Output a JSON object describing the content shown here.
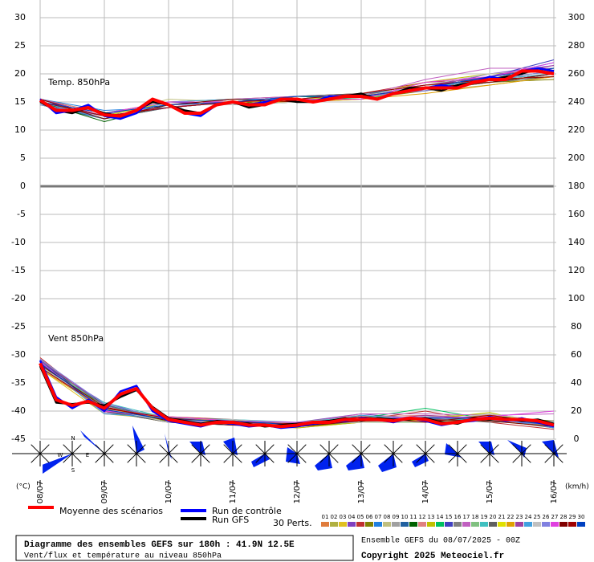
{
  "chart_data": {
    "type": "line",
    "annotations": {
      "temp": "Temp. 850hPa",
      "wind": "Vent 850hPa",
      "y_unit": "(°C)",
      "y2_unit": "(km/h)",
      "compass": [
        "N",
        "W",
        "E",
        "S"
      ]
    },
    "xlim": [
      0,
      192
    ],
    "xticks": [
      {
        "value": 0,
        "label": "08/07"
      },
      {
        "value": 24,
        "label": "09/07"
      },
      {
        "value": 48,
        "label": "10/07"
      },
      {
        "value": 72,
        "label": "11/07"
      },
      {
        "value": 96,
        "label": "12/07"
      },
      {
        "value": 120,
        "label": "13/07"
      },
      {
        "value": 144,
        "label": "14/07"
      },
      {
        "value": 168,
        "label": "15/07"
      },
      {
        "value": 192,
        "label": "16/07"
      }
    ],
    "ylim": [
      -45,
      30
    ],
    "yticks": [
      -45,
      -40,
      -35,
      -30,
      -25,
      -20,
      -15,
      -10,
      -5,
      0,
      5,
      10,
      15,
      20,
      25,
      30
    ],
    "y2lim": [
      0,
      300
    ],
    "y2ticks": [
      0,
      20,
      40,
      60,
      80,
      100,
      120,
      140,
      160,
      180,
      200,
      220,
      240,
      260,
      280,
      300
    ],
    "grid": true,
    "x": [
      0,
      6,
      12,
      18,
      24,
      30,
      36,
      42,
      48,
      54,
      60,
      66,
      72,
      78,
      84,
      90,
      96,
      102,
      108,
      114,
      120,
      126,
      132,
      138,
      144,
      150,
      156,
      162,
      168,
      174,
      180,
      186,
      192
    ],
    "series": [
      {
        "name": "Moyenne des scénarios",
        "color": "#ff0000",
        "temp": [
          15.3,
          13.5,
          13.5,
          14,
          12.7,
          12.5,
          13.5,
          15.5,
          14.5,
          13,
          13,
          14.5,
          15,
          14.5,
          14.5,
          15.5,
          15.5,
          15,
          15.5,
          16,
          16,
          15.5,
          16.5,
          17,
          17.5,
          17.5,
          17.5,
          18.5,
          19,
          19,
          20.5,
          20.5,
          20
        ],
        "wind": [
          54,
          28,
          24,
          27,
          22,
          32,
          36,
          22,
          14,
          12,
          10,
          12,
          12,
          10,
          10,
          9,
          10,
          12,
          12,
          14,
          14,
          14,
          13,
          15,
          14,
          11,
          12,
          14,
          15,
          14,
          14,
          13,
          10
        ]
      },
      {
        "name": "Run de contrôle",
        "color": "#0000ff",
        "temp": [
          15.5,
          13,
          13.5,
          14.5,
          12.5,
          12,
          13,
          15.5,
          14.5,
          13,
          12.5,
          14.5,
          15,
          14.5,
          15,
          15.5,
          15.5,
          15,
          16,
          16,
          16,
          15.5,
          16.5,
          17,
          17.5,
          18,
          17.5,
          18.5,
          19.5,
          19,
          20.5,
          21,
          20.5
        ],
        "wind": [
          56,
          30,
          22,
          28,
          20,
          34,
          38,
          20,
          13,
          11,
          9,
          12,
          11,
          9,
          10,
          8,
          9,
          11,
          12,
          13,
          15,
          14,
          12,
          15,
          13,
          10,
          12,
          13,
          16,
          13,
          15,
          12,
          9
        ]
      },
      {
        "name": "Run GFS",
        "color": "#000000",
        "temp": [
          15,
          13.5,
          13,
          14,
          13,
          12.5,
          13.5,
          15,
          14.5,
          13.5,
          13,
          14.5,
          15,
          14,
          14.5,
          15.5,
          15,
          15,
          15.5,
          16,
          16.5,
          15.5,
          16.5,
          17.5,
          17.5,
          17,
          18,
          18.5,
          19,
          19.5,
          20,
          21,
          20.5
        ],
        "wind": [
          52,
          26,
          25,
          26,
          24,
          30,
          35,
          23,
          15,
          13,
          11,
          13,
          12,
          11,
          9,
          10,
          11,
          12,
          13,
          15,
          13,
          15,
          14,
          14,
          15,
          12,
          11,
          15,
          14,
          15,
          13,
          14,
          11
        ]
      }
    ],
    "perturbations": {
      "label": "30 Perts.",
      "x": [
        0,
        24,
        48,
        72,
        96,
        120,
        144,
        168,
        192
      ],
      "series": [
        {
          "name": "01",
          "color": "#e07c3c",
          "temp": [
            15,
            12.5,
            14,
            15.5,
            15.5,
            16,
            18,
            19.5,
            21
          ],
          "wind": [
            52,
            20,
            12,
            10,
            8,
            12,
            16,
            14,
            8
          ]
        },
        {
          "name": "02",
          "color": "#b0b040",
          "temp": [
            15.5,
            13,
            15,
            14.5,
            15,
            16.5,
            17,
            18.5,
            20
          ],
          "wind": [
            56,
            24,
            15,
            13,
            11,
            16,
            12,
            18,
            12
          ]
        },
        {
          "name": "03",
          "color": "#e0c020",
          "temp": [
            14.5,
            12,
            14.5,
            15,
            16,
            15.5,
            18,
            19,
            19.5
          ],
          "wind": [
            50,
            18,
            14,
            11,
            9,
            13,
            15,
            13,
            9
          ]
        },
        {
          "name": "04",
          "color": "#8040c0",
          "temp": [
            15,
            13,
            14,
            15,
            15.5,
            16,
            17.5,
            20,
            21.5
          ],
          "wind": [
            54,
            26,
            13,
            12,
            12,
            18,
            14,
            17,
            11
          ]
        },
        {
          "name": "05",
          "color": "#c03030",
          "temp": [
            15.5,
            12.5,
            15,
            15.5,
            16,
            16.5,
            18.5,
            19,
            20.5
          ],
          "wind": [
            58,
            22,
            16,
            14,
            10,
            14,
            20,
            12,
            7
          ]
        },
        {
          "name": "06",
          "color": "#808000",
          "temp": [
            15,
            12,
            14.5,
            14.5,
            15,
            15.5,
            17,
            18.5,
            19
          ],
          "wind": [
            52,
            20,
            12,
            11,
            9,
            12,
            13,
            16,
            13
          ]
        },
        {
          "name": "07",
          "color": "#2080e0",
          "temp": [
            15.5,
            13.5,
            14,
            15,
            15.5,
            16,
            17.5,
            19.5,
            22
          ],
          "wind": [
            55,
            24,
            14,
            13,
            11,
            15,
            14,
            15,
            9
          ]
        },
        {
          "name": "08",
          "color": "#c0c080",
          "temp": [
            15,
            12.5,
            15.5,
            15,
            16,
            16,
            17,
            18,
            19.5
          ],
          "wind": [
            53,
            21,
            15,
            12,
            10,
            13,
            16,
            18,
            10
          ]
        },
        {
          "name": "09",
          "color": "#a0a0a0",
          "temp": [
            15,
            13,
            14.5,
            15.5,
            15,
            16.5,
            18,
            19,
            20
          ],
          "wind": [
            51,
            23,
            13,
            10,
            12,
            17,
            12,
            14,
            11
          ]
        },
        {
          "name": "10",
          "color": "#2060a0",
          "temp": [
            14.5,
            12,
            14,
            15,
            15.5,
            15.5,
            17.5,
            19.5,
            21
          ],
          "wind": [
            57,
            19,
            14,
            13,
            9,
            14,
            15,
            16,
            8
          ]
        },
        {
          "name": "11",
          "color": "#006000",
          "temp": [
            15,
            11.5,
            14.5,
            14.5,
            16,
            16,
            18,
            18.5,
            20
          ],
          "wind": [
            54,
            25,
            12,
            12,
            10,
            13,
            13,
            13,
            12
          ]
        },
        {
          "name": "12",
          "color": "#e08080",
          "temp": [
            15.5,
            13,
            15,
            15,
            15.5,
            16.5,
            17,
            19,
            21
          ],
          "wind": [
            50,
            22,
            16,
            11,
            11,
            16,
            17,
            15,
            10
          ]
        },
        {
          "name": "13",
          "color": "#c0c000",
          "temp": [
            15,
            12.5,
            14,
            15.5,
            15,
            16,
            18.5,
            20,
            20.5
          ],
          "wind": [
            55,
            20,
            13,
            14,
            8,
            12,
            14,
            19,
            9
          ]
        },
        {
          "name": "14",
          "color": "#00c060",
          "temp": [
            15,
            13,
            14.5,
            15,
            16,
            15.5,
            17.5,
            19,
            19.5
          ],
          "wind": [
            53,
            24,
            15,
            12,
            10,
            15,
            22,
            14,
            11
          ]
        },
        {
          "name": "15",
          "color": "#4040c0",
          "temp": [
            15.5,
            12.5,
            15,
            14.5,
            15.5,
            16,
            17,
            19.5,
            22.5
          ],
          "wind": [
            56,
            21,
            12,
            10,
            12,
            13,
            13,
            16,
            8
          ]
        },
        {
          "name": "16",
          "color": "#808080",
          "temp": [
            15,
            12,
            14.5,
            15,
            15,
            16.5,
            18,
            18.5,
            20
          ],
          "wind": [
            52,
            23,
            14,
            13,
            9,
            14,
            15,
            12,
            13
          ]
        },
        {
          "name": "17",
          "color": "#c060c0",
          "temp": [
            15,
            13,
            14,
            15.5,
            16,
            16,
            19,
            21,
            21
          ],
          "wind": [
            54,
            19,
            16,
            11,
            11,
            18,
            18,
            17,
            18
          ]
        },
        {
          "name": "18",
          "color": "#80c080",
          "temp": [
            14.5,
            12.5,
            15,
            15,
            15.5,
            15.5,
            17.5,
            19,
            20.5
          ],
          "wind": [
            57,
            22,
            13,
            12,
            10,
            12,
            12,
            15,
            9
          ]
        },
        {
          "name": "19",
          "color": "#40c0c0",
          "temp": [
            15,
            13,
            14.5,
            14.5,
            15,
            16,
            18,
            19.5,
            21
          ],
          "wind": [
            51,
            26,
            15,
            14,
            12,
            16,
            14,
            14,
            10
          ]
        },
        {
          "name": "20",
          "color": "#606060",
          "temp": [
            15.5,
            12,
            14,
            15,
            16,
            16.5,
            17,
            18.5,
            19.5
          ],
          "wind": [
            55,
            20,
            12,
            10,
            9,
            13,
            16,
            13,
            12
          ]
        },
        {
          "name": "21",
          "color": "#e0e000",
          "temp": [
            15,
            12.5,
            15,
            15.5,
            15.5,
            16,
            17.5,
            19,
            20
          ],
          "wind": [
            53,
            23,
            14,
            12,
            11,
            14,
            13,
            17,
            11
          ]
        },
        {
          "name": "22",
          "color": "#e0a000",
          "temp": [
            15,
            13,
            14.5,
            15,
            15,
            15.5,
            16.5,
            18,
            19.5
          ],
          "wind": [
            50,
            21,
            16,
            13,
            10,
            15,
            15,
            16,
            9
          ]
        },
        {
          "name": "23",
          "color": "#a040a0",
          "temp": [
            15.5,
            12.5,
            14,
            15,
            16,
            16,
            18,
            19.5,
            21.5
          ],
          "wind": [
            56,
            24,
            13,
            11,
            12,
            13,
            17,
            14,
            10
          ]
        },
        {
          "name": "24",
          "color": "#40a0e0",
          "temp": [
            15,
            12,
            15,
            15.5,
            15.5,
            16.5,
            17.5,
            19,
            20
          ],
          "wind": [
            54,
            18,
            15,
            12,
            9,
            17,
            14,
            15,
            8
          ]
        },
        {
          "name": "25",
          "color": "#c0c0c0",
          "temp": [
            15,
            13,
            14.5,
            14.5,
            15,
            16,
            18,
            20,
            21
          ],
          "wind": [
            52,
            22,
            12,
            14,
            11,
            12,
            13,
            18,
            12
          ]
        },
        {
          "name": "26",
          "color": "#8080e0",
          "temp": [
            14.5,
            12.5,
            14,
            15,
            16,
            16,
            17,
            19,
            20.5
          ],
          "wind": [
            57,
            25,
            14,
            11,
            10,
            14,
            16,
            14,
            10
          ]
        },
        {
          "name": "27",
          "color": "#e040e0",
          "temp": [
            15,
            13,
            15,
            15,
            15.5,
            15.5,
            18.5,
            19.5,
            22
          ],
          "wind": [
            55,
            20,
            16,
            13,
            12,
            15,
            15,
            16,
            20
          ]
        },
        {
          "name": "28",
          "color": "#800000",
          "temp": [
            15.5,
            12,
            14.5,
            15.5,
            15,
            16,
            17.5,
            18.5,
            20
          ],
          "wind": [
            53,
            23,
            13,
            10,
            9,
            13,
            14,
            13,
            9
          ]
        },
        {
          "name": "29",
          "color": "#a00000",
          "temp": [
            15,
            12.5,
            14,
            15,
            15.5,
            16.5,
            18,
            19,
            19.5
          ],
          "wind": [
            51,
            22,
            15,
            12,
            11,
            16,
            12,
            17,
            11
          ]
        },
        {
          "name": "30",
          "color": "#0040c0",
          "temp": [
            15,
            13,
            14.5,
            15,
            16,
            16,
            17.5,
            19.5,
            21
          ],
          "wind": [
            54,
            21,
            14,
            13,
            10,
            14,
            15,
            15,
            10
          ]
        }
      ]
    },
    "footer": {
      "title": "Diagramme des ensembles GEFS sur 180h : 41.9N 12.5E",
      "subtitle": "Vent/flux et température au niveau 850hPa",
      "run": "Ensemble GEFS du 08/07/2025 - 00Z",
      "copyright": "Copyright 2025 Meteociel.fr"
    }
  }
}
